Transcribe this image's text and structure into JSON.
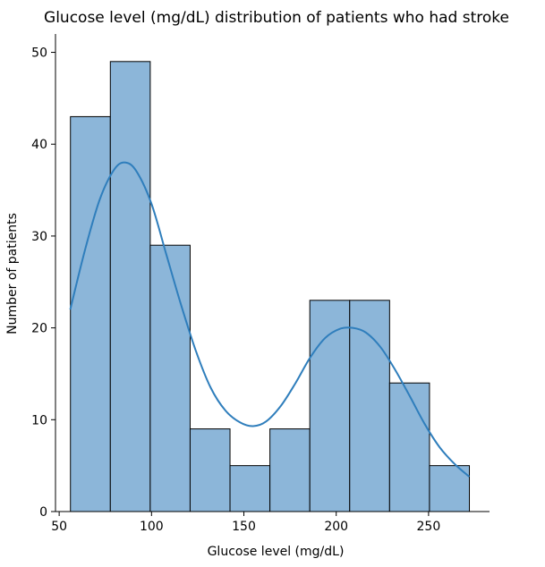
{
  "chart_data": {
    "type": "bar",
    "subtype": "histogram-with-kde",
    "title": "Glucose level (mg/dL) distribution of patients who had stroke",
    "xlabel": "Glucose level (mg/dL)",
    "ylabel": "Number of patients",
    "xlim": [
      48,
      283
    ],
    "ylim": [
      0,
      52
    ],
    "xticks": [
      50,
      100,
      150,
      200,
      250
    ],
    "yticks": [
      0,
      10,
      20,
      30,
      40,
      50
    ],
    "grid": false,
    "bar_color": "#8cb6d9",
    "line_color": "#2f7ebc",
    "bins": [
      {
        "x0": 56.1,
        "x1": 77.7,
        "count": 43
      },
      {
        "x0": 77.7,
        "x1": 99.3,
        "count": 49
      },
      {
        "x0": 99.3,
        "x1": 120.9,
        "count": 29
      },
      {
        "x0": 120.9,
        "x1": 142.5,
        "count": 9
      },
      {
        "x0": 142.5,
        "x1": 164.1,
        "count": 5
      },
      {
        "x0": 164.1,
        "x1": 185.7,
        "count": 9
      },
      {
        "x0": 185.7,
        "x1": 207.3,
        "count": 23
      },
      {
        "x0": 207.3,
        "x1": 228.9,
        "count": 23
      },
      {
        "x0": 228.9,
        "x1": 250.5,
        "count": 14
      },
      {
        "x0": 250.5,
        "x1": 272.1,
        "count": 5
      }
    ],
    "kde": {
      "x": [
        56,
        64,
        72,
        80,
        86,
        92,
        100,
        108,
        116,
        124,
        132,
        140,
        148,
        155,
        162,
        170,
        178,
        186,
        194,
        202,
        209,
        216,
        224,
        232,
        240,
        248,
        256,
        264,
        272
      ],
      "y": [
        22,
        28.5,
        34,
        37.3,
        38,
        37,
        33.5,
        28,
        22.5,
        17.5,
        13.5,
        11,
        9.7,
        9.3,
        9.8,
        11.5,
        14,
        16.8,
        18.9,
        19.9,
        20,
        19.5,
        17.9,
        15.4,
        12.5,
        9.5,
        7,
        5.2,
        3.8
      ]
    }
  }
}
